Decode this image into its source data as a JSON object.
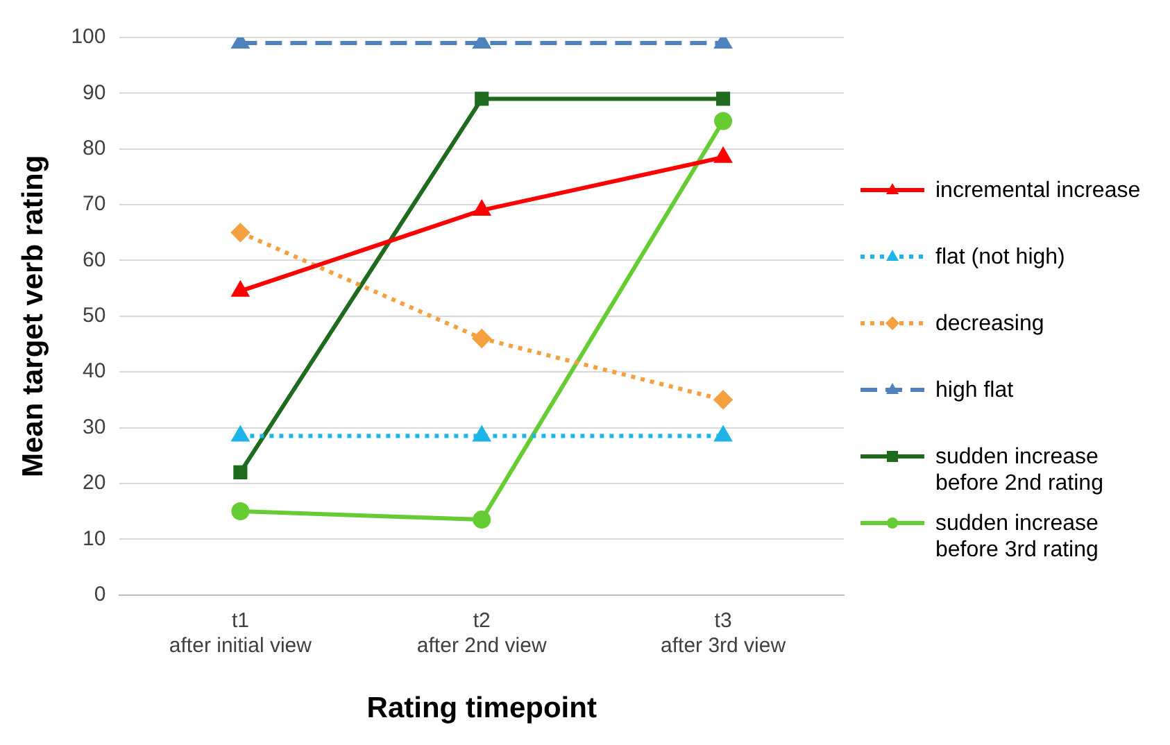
{
  "chart_data": {
    "type": "line",
    "xlabel": "Rating timepoint",
    "ylabel": "Mean target verb rating",
    "categories": [
      "t1\nafter initial view",
      "t2\nafter 2nd view",
      "t3\nafter 3rd view"
    ],
    "ylim": [
      0,
      100
    ],
    "yticks": [
      0,
      10,
      20,
      30,
      40,
      50,
      60,
      70,
      80,
      90,
      100
    ],
    "grid": "y",
    "legend": "right",
    "series": [
      {
        "name": "incremental increase",
        "color": "#ff0000",
        "marker": "triangle",
        "line_style": "solid",
        "values": [
          54.5,
          69,
          78.5
        ]
      },
      {
        "name": "flat (not high)",
        "color": "#1fb4e8",
        "marker": "triangle",
        "line_style": "dotted",
        "values": [
          28.5,
          28.5,
          28.5
        ]
      },
      {
        "name": "decreasing",
        "color": "#f4a040",
        "marker": "diamond",
        "line_style": "dotted",
        "values": [
          65,
          46,
          35
        ]
      },
      {
        "name": "high flat",
        "color": "#4f81bd",
        "marker": "triangle",
        "line_style": "dashed",
        "values": [
          99,
          99,
          99
        ]
      },
      {
        "name": "sudden increase before 2nd rating",
        "color": "#1e6b1e",
        "marker": "square",
        "line_style": "solid",
        "values": [
          22,
          89,
          89
        ]
      },
      {
        "name": "sudden increase before 3rd rating",
        "color": "#66cc33",
        "marker": "circle",
        "line_style": "solid",
        "values": [
          15,
          13.5,
          85
        ]
      }
    ]
  }
}
